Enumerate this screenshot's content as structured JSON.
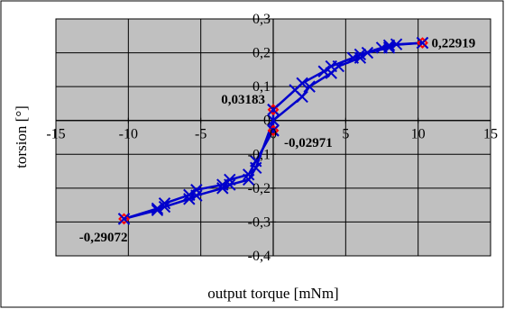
{
  "chart_data": {
    "type": "line",
    "title": "",
    "xlabel": "output torque [mNm]",
    "ylabel": "torsion [°]",
    "xlim": [
      -15,
      15
    ],
    "ylim": [
      -0.4,
      0.3
    ],
    "x_ticks": [
      -15,
      -10,
      -5,
      0,
      5,
      10,
      15
    ],
    "x_tick_labels": [
      "-15",
      "-10",
      "-5",
      "0",
      "5",
      "10",
      "15"
    ],
    "y_ticks": [
      -0.4,
      -0.3,
      -0.2,
      -0.1,
      0,
      0.1,
      0.2,
      0.3
    ],
    "y_tick_labels": [
      "-0,4",
      "-0,3",
      "-0,2",
      "-0,1",
      "0",
      "0,1",
      "0,2",
      "0,3"
    ],
    "grid": true,
    "plot_background": "#c0c0c0",
    "line_color": "#0000cc",
    "highlight_color": "#ff0000",
    "series": [
      {
        "marker": "x",
        "x": [
          -10.3,
          -8,
          -7.5,
          -5.8,
          -5.3,
          -3.5,
          -3,
          -1.7,
          -1.2,
          0,
          0
        ],
        "y": [
          -0.29072,
          -0.265,
          -0.255,
          -0.232,
          -0.222,
          -0.2,
          -0.19,
          -0.175,
          -0.14,
          0,
          0.03183
        ]
      },
      {
        "marker": "x",
        "x": [
          0,
          1.5,
          2,
          3.5,
          4,
          5.5,
          6,
          7.5,
          8,
          10.3
        ],
        "y": [
          0.03183,
          0.09,
          0.11,
          0.145,
          0.16,
          0.185,
          0.195,
          0.215,
          0.222,
          0.22919
        ]
      },
      {
        "marker": "x",
        "x": [
          10.3,
          8.5,
          8,
          6.5,
          6,
          4.5,
          4,
          2.5,
          2,
          0,
          0
        ],
        "y": [
          0.22919,
          0.225,
          0.215,
          0.2,
          0.185,
          0.16,
          0.14,
          0.1,
          0.07,
          0,
          -0.02971
        ]
      },
      {
        "marker": "x",
        "x": [
          0,
          -1.2,
          -1.7,
          -3,
          -3.5,
          -5.3,
          -5.8,
          -7.5,
          -8,
          -10.3
        ],
        "y": [
          -0.02971,
          -0.12,
          -0.16,
          -0.175,
          -0.19,
          -0.205,
          -0.22,
          -0.245,
          -0.26,
          -0.29072
        ]
      }
    ],
    "annotations": [
      {
        "label": "0,22919",
        "x": 10.3,
        "y": 0.22919,
        "anchor": "right"
      },
      {
        "label": "0,03183",
        "x": 0,
        "y": 0.03183,
        "anchor": "left"
      },
      {
        "label": "-0,02971",
        "x": 0,
        "y": -0.02971,
        "anchor": "below-right"
      },
      {
        "label": "-0,29072",
        "x": -10.3,
        "y": -0.29072,
        "anchor": "below-left"
      }
    ]
  }
}
